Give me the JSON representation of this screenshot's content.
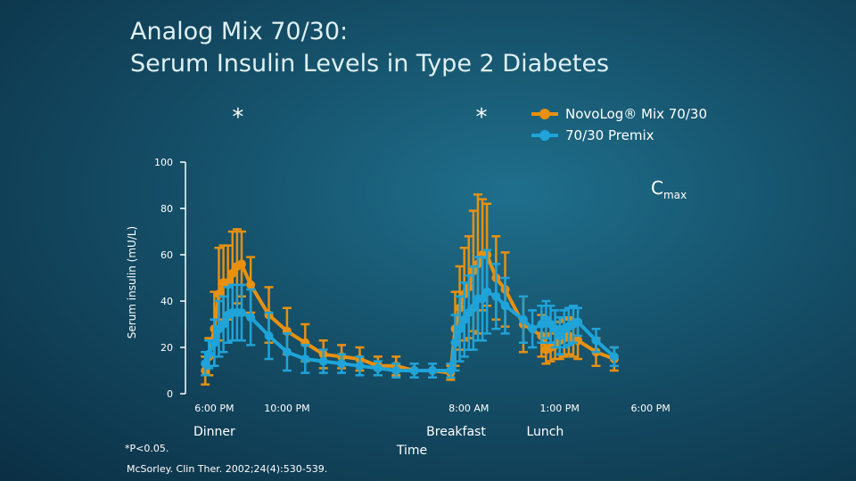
{
  "title_line1": "Analog Mix 70/30:",
  "title_line2": "Serum Insulin Levels in Type 2 Diabetes",
  "footnote": "*P<0.05.",
  "citation": "McSorley. Clin Ther. 2002;24(4):530-539.",
  "chart_data": {
    "type": "line",
    "ylabel": "Serum insulin (mU/L)",
    "xlabel": "Time",
    "ylim": [
      0,
      100
    ],
    "yticks": [
      0,
      20,
      40,
      60,
      80,
      100
    ],
    "xlim": [
      -1,
      25
    ],
    "xticks": [
      {
        "x": 0,
        "label": "6:00 PM"
      },
      {
        "x": 4,
        "label": "10:00 PM"
      },
      {
        "x": 14,
        "label": "8:00 AM"
      },
      {
        "x": 19,
        "label": "1:00 PM"
      },
      {
        "x": 24,
        "label": "6:00 PM"
      }
    ],
    "meals": [
      {
        "x": 0,
        "label": "Dinner"
      },
      {
        "x": 13.3,
        "label": "Breakfast"
      },
      {
        "x": 18.2,
        "label": "Lunch"
      }
    ],
    "significance": [
      {
        "x": 1.3,
        "label": "*"
      },
      {
        "x": 14.7,
        "label": "*"
      }
    ],
    "annotation": {
      "text": "C",
      "sub": "max"
    },
    "colors": {
      "novolog": "#e8900f",
      "premix": "#1fa3d8"
    },
    "series": [
      {
        "name": "NovoLog® Mix 70/30",
        "color": "#e8900f",
        "x": [
          -0.5,
          -0.3,
          0,
          0.25,
          0.5,
          0.75,
          1,
          1.25,
          1.5,
          2,
          3,
          4,
          5,
          6,
          7,
          8,
          9,
          10,
          11,
          12,
          13,
          13.25,
          13.5,
          13.75,
          14,
          14.25,
          14.5,
          14.75,
          15,
          15.5,
          16,
          17,
          18,
          18.25,
          18.5,
          18.75,
          19,
          19.25,
          19.5,
          19.75,
          20,
          21,
          22
        ],
        "values": [
          10,
          16,
          28,
          43,
          48,
          48,
          52,
          55,
          56,
          47,
          34,
          27,
          22,
          17,
          16,
          15,
          12,
          12,
          10,
          10,
          9,
          28,
          37,
          43,
          46,
          53,
          56,
          60,
          60,
          50,
          45,
          30,
          25,
          19,
          20,
          21,
          23,
          24,
          25,
          24,
          23,
          18,
          15
        ],
        "err": [
          6,
          8,
          16,
          20,
          16,
          16,
          18,
          16,
          14,
          12,
          12,
          10,
          8,
          6,
          5,
          5,
          4,
          4,
          3,
          3,
          3,
          16,
          18,
          20,
          22,
          26,
          30,
          24,
          22,
          18,
          16,
          12,
          9,
          6,
          6,
          6,
          8,
          8,
          8,
          8,
          8,
          6,
          5
        ]
      },
      {
        "name": "70/30 Premix",
        "color": "#1fa3d8",
        "x": [
          -0.5,
          -0.3,
          0,
          0.25,
          0.5,
          0.75,
          1,
          1.25,
          1.5,
          2,
          3,
          4,
          5,
          6,
          7,
          8,
          9,
          10,
          11,
          12,
          13,
          13.25,
          13.5,
          13.75,
          14,
          14.25,
          14.5,
          14.75,
          15,
          15.5,
          16,
          17,
          17.5,
          18,
          18.25,
          18.5,
          18.75,
          19,
          19.25,
          19.5,
          19.75,
          20,
          21,
          22
        ],
        "values": [
          13,
          17,
          22,
          28,
          30,
          34,
          35,
          35,
          35,
          33,
          25,
          18,
          15,
          14,
          13,
          12,
          11,
          10,
          10,
          10,
          10,
          22,
          28,
          32,
          35,
          37,
          41,
          41,
          44,
          42,
          38,
          32,
          28,
          30,
          32,
          30,
          28,
          25,
          28,
          29,
          30,
          31,
          23,
          16
        ],
        "err": [
          5,
          6,
          10,
          12,
          12,
          12,
          12,
          12,
          12,
          12,
          10,
          8,
          6,
          5,
          4,
          4,
          3,
          3,
          3,
          3,
          3,
          12,
          14,
          16,
          16,
          18,
          18,
          18,
          18,
          14,
          12,
          10,
          8,
          8,
          8,
          8,
          8,
          8,
          8,
          8,
          8,
          6,
          5,
          4
        ]
      }
    ]
  }
}
